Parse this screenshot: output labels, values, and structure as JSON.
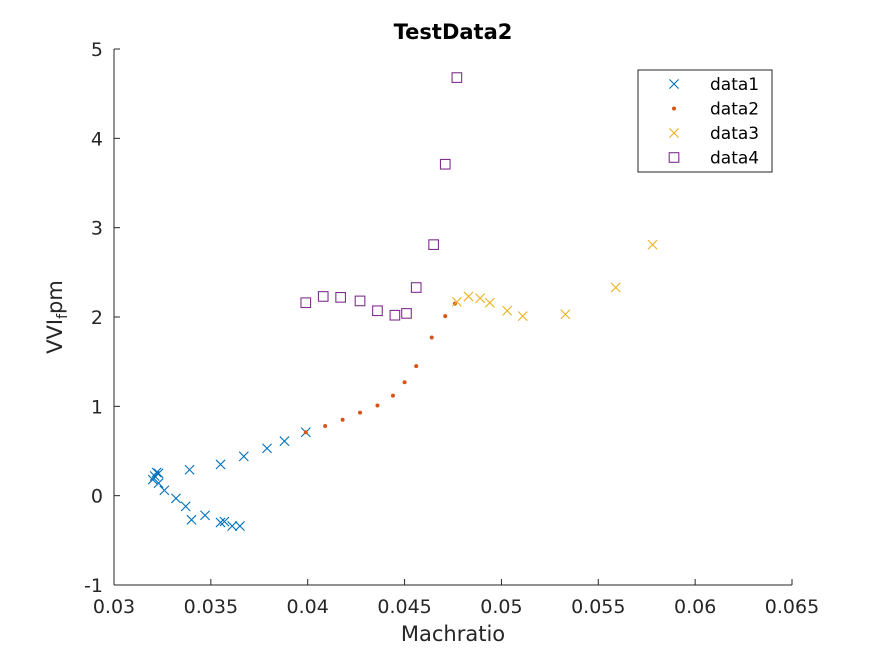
{
  "chart_data": {
    "type": "scatter",
    "title": "TestData2",
    "xlabel": "Machratio",
    "ylabel": "VVI",
    "ylabel_sub": "f",
    "ylabel_suffix": "pm",
    "xlim": [
      0.03,
      0.065
    ],
    "ylim": [
      -1,
      5
    ],
    "xticks": [
      0.03,
      0.035,
      0.04,
      0.045,
      0.05,
      0.055,
      0.06,
      0.065
    ],
    "xtick_labels": [
      "0.03",
      "0.035",
      "0.04",
      "0.045",
      "0.05",
      "0.055",
      "0.06",
      "0.065"
    ],
    "yticks": [
      -1,
      0,
      1,
      2,
      3,
      4,
      5
    ],
    "ytick_labels": [
      "-1",
      "0",
      "1",
      "2",
      "3",
      "4",
      "5"
    ],
    "grid": false,
    "legend_position": "top-right",
    "series": [
      {
        "name": "data1",
        "marker": "x",
        "color": "#0072BD",
        "points": [
          [
            0.032,
            0.18
          ],
          [
            0.0321,
            0.22
          ],
          [
            0.0322,
            0.26
          ],
          [
            0.0323,
            0.25
          ],
          [
            0.0323,
            0.14
          ],
          [
            0.0326,
            0.06
          ],
          [
            0.0332,
            -0.03
          ],
          [
            0.0337,
            -0.12
          ],
          [
            0.034,
            -0.27
          ],
          [
            0.0347,
            -0.22
          ],
          [
            0.0355,
            -0.3
          ],
          [
            0.0357,
            -0.29
          ],
          [
            0.0361,
            -0.34
          ],
          [
            0.0365,
            -0.34
          ],
          [
            0.0339,
            0.29
          ],
          [
            0.0355,
            0.35
          ],
          [
            0.0367,
            0.44
          ],
          [
            0.0379,
            0.53
          ],
          [
            0.0388,
            0.61
          ],
          [
            0.0399,
            0.71
          ]
        ]
      },
      {
        "name": "data2",
        "marker": "dot",
        "color": "#D95319",
        "points": [
          [
            0.0399,
            0.71
          ],
          [
            0.0409,
            0.78
          ],
          [
            0.0418,
            0.85
          ],
          [
            0.0427,
            0.93
          ],
          [
            0.0436,
            1.01
          ],
          [
            0.0444,
            1.12
          ],
          [
            0.045,
            1.27
          ],
          [
            0.0456,
            1.45
          ],
          [
            0.0464,
            1.77
          ],
          [
            0.0471,
            2.01
          ],
          [
            0.0476,
            2.15
          ]
        ]
      },
      {
        "name": "data3",
        "marker": "x",
        "color": "#EDB120",
        "points": [
          [
            0.0477,
            2.17
          ],
          [
            0.0483,
            2.23
          ],
          [
            0.0489,
            2.21
          ],
          [
            0.0494,
            2.16
          ],
          [
            0.0503,
            2.07
          ],
          [
            0.0511,
            2.01
          ],
          [
            0.0533,
            2.03
          ],
          [
            0.0559,
            2.33
          ],
          [
            0.0578,
            2.81
          ]
        ]
      },
      {
        "name": "data4",
        "marker": "square",
        "color": "#7E2F8E",
        "points": [
          [
            0.0399,
            2.16
          ],
          [
            0.0408,
            2.23
          ],
          [
            0.0417,
            2.22
          ],
          [
            0.0427,
            2.18
          ],
          [
            0.0436,
            2.07
          ],
          [
            0.0445,
            2.02
          ],
          [
            0.0451,
            2.04
          ],
          [
            0.0456,
            2.33
          ],
          [
            0.0465,
            2.81
          ],
          [
            0.0471,
            3.71
          ],
          [
            0.0477,
            4.68
          ]
        ]
      }
    ]
  }
}
